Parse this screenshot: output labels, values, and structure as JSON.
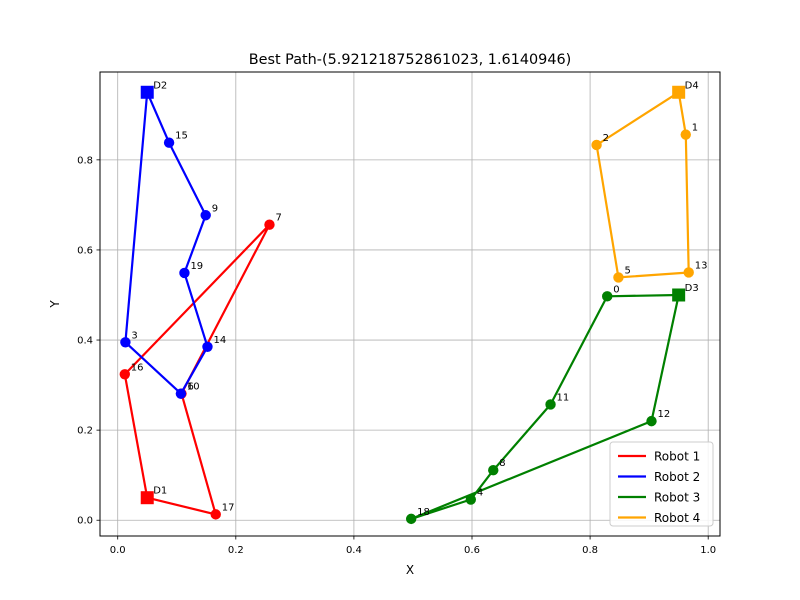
{
  "chart_data": {
    "type": "line",
    "title": "Best Path-(5.921218752861023, 1.6140946)",
    "xlabel": "X",
    "ylabel": "Y",
    "xlim": [
      -0.03,
      1.02
    ],
    "ylim": [
      -0.035,
      0.995
    ],
    "xticks": [
      0.0,
      0.2,
      0.4,
      0.6,
      0.8,
      1.0
    ],
    "xtick_labels": [
      "0.0",
      "0.2",
      "0.4",
      "0.6",
      "0.8",
      "1.0"
    ],
    "yticks": [
      0.0,
      0.2,
      0.4,
      0.6,
      0.8
    ],
    "ytick_labels": [
      "0.0",
      "0.2",
      "0.4",
      "0.6",
      "0.8"
    ],
    "grid": true,
    "legend_position": "lower-right",
    "series": [
      {
        "name": "Robot 1",
        "color": "#ff0000",
        "depot": {
          "label": "D1",
          "x": 0.05,
          "y": 0.05
        },
        "path": [
          {
            "label": "D1",
            "x": 0.05,
            "y": 0.05
          },
          {
            "label": "17",
            "x": 0.166,
            "y": 0.013
          },
          {
            "label": "6",
            "x": 0.108,
            "y": 0.281
          },
          {
            "label": "7",
            "x": 0.257,
            "y": 0.656
          },
          {
            "label": "16",
            "x": 0.012,
            "y": 0.324
          },
          {
            "label": "D1",
            "x": 0.05,
            "y": 0.05
          }
        ]
      },
      {
        "name": "Robot 2",
        "color": "#0000ff",
        "depot": {
          "label": "D2",
          "x": 0.05,
          "y": 0.95
        },
        "path": [
          {
            "label": "D2",
            "x": 0.05,
            "y": 0.95
          },
          {
            "label": "15",
            "x": 0.087,
            "y": 0.838
          },
          {
            "label": "9",
            "x": 0.149,
            "y": 0.677
          },
          {
            "label": "19",
            "x": 0.113,
            "y": 0.549
          },
          {
            "label": "14",
            "x": 0.152,
            "y": 0.385
          },
          {
            "label": "10",
            "x": 0.107,
            "y": 0.281
          },
          {
            "label": "3",
            "x": 0.013,
            "y": 0.395
          },
          {
            "label": "D2",
            "x": 0.05,
            "y": 0.95
          }
        ]
      },
      {
        "name": "Robot 3",
        "color": "#008000",
        "depot": {
          "label": "D3",
          "x": 0.95,
          "y": 0.5
        },
        "path": [
          {
            "label": "D3",
            "x": 0.95,
            "y": 0.5
          },
          {
            "label": "0",
            "x": 0.829,
            "y": 0.497
          },
          {
            "label": "11",
            "x": 0.733,
            "y": 0.257
          },
          {
            "label": "8",
            "x": 0.636,
            "y": 0.111
          },
          {
            "label": "4",
            "x": 0.598,
            "y": 0.046
          },
          {
            "label": "18",
            "x": 0.497,
            "y": 0.003
          },
          {
            "label": "12",
            "x": 0.904,
            "y": 0.22
          },
          {
            "label": "D3",
            "x": 0.95,
            "y": 0.5
          }
        ]
      },
      {
        "name": "Robot 4",
        "color": "#ffa500",
        "depot": {
          "label": "D4",
          "x": 0.95,
          "y": 0.95
        },
        "path": [
          {
            "label": "D4",
            "x": 0.95,
            "y": 0.95
          },
          {
            "label": "2",
            "x": 0.811,
            "y": 0.833
          },
          {
            "label": "5",
            "x": 0.848,
            "y": 0.539
          },
          {
            "label": "13",
            "x": 0.967,
            "y": 0.55
          },
          {
            "label": "1",
            "x": 0.962,
            "y": 0.856
          },
          {
            "label": "D4",
            "x": 0.95,
            "y": 0.95
          }
        ]
      }
    ]
  }
}
